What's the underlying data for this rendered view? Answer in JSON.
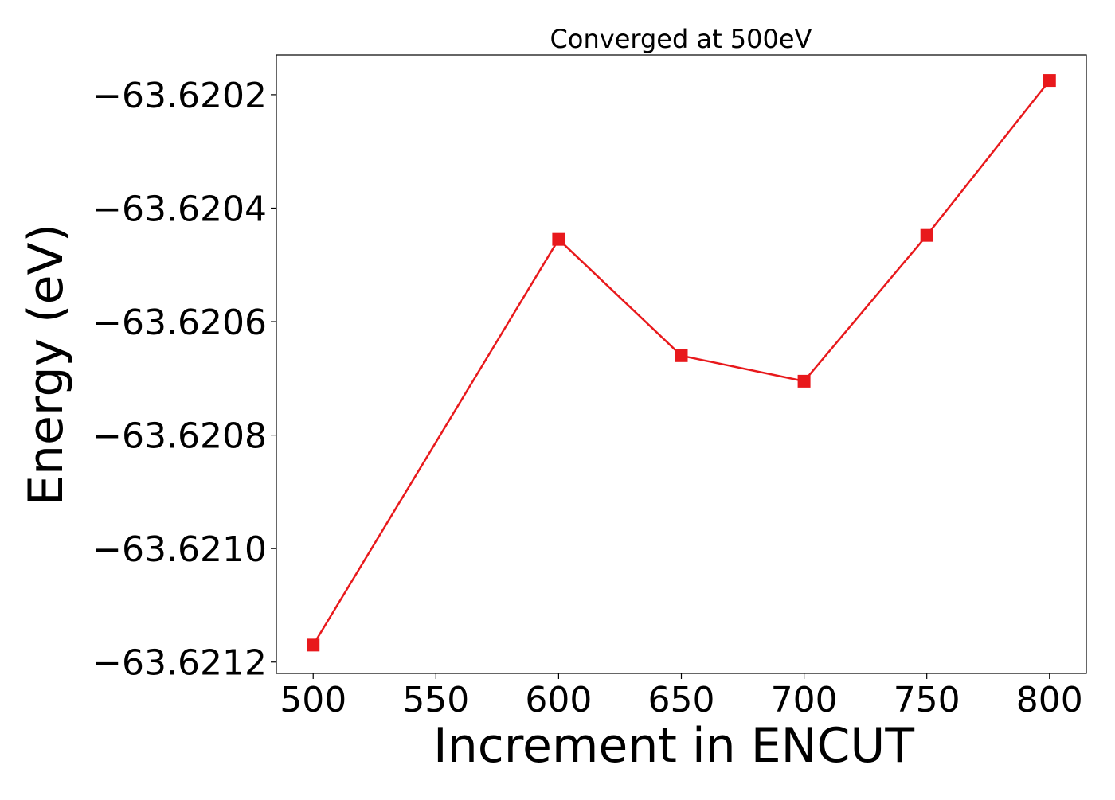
{
  "chart_data": {
    "type": "line",
    "title": "Converged at 500eV",
    "xlabel": "Increment in ENCUT",
    "ylabel": "Energy (eV)",
    "x": [
      500,
      600,
      650,
      700,
      750,
      800
    ],
    "series": [
      {
        "values": [
          -63.62117,
          -63.620455,
          -63.62066,
          -63.620705,
          -63.620448,
          -63.620175
        ]
      }
    ],
    "xlim": [
      485,
      815
    ],
    "ylim": [
      -63.62122,
      -63.62013
    ],
    "xticks": [
      500,
      550,
      600,
      650,
      700,
      750,
      800
    ],
    "xtick_labels": [
      "500",
      "550",
      "600",
      "650",
      "700",
      "750",
      "800"
    ],
    "yticks": [
      -63.6202,
      -63.6204,
      -63.6206,
      -63.6208,
      -63.621,
      -63.6212
    ],
    "ytick_labels": [
      "−63.6202",
      "−63.6204",
      "−63.6206",
      "−63.6208",
      "−63.6210",
      "−63.6212"
    ],
    "marker": "square",
    "grid": false,
    "line_color": "#e8191c"
  }
}
